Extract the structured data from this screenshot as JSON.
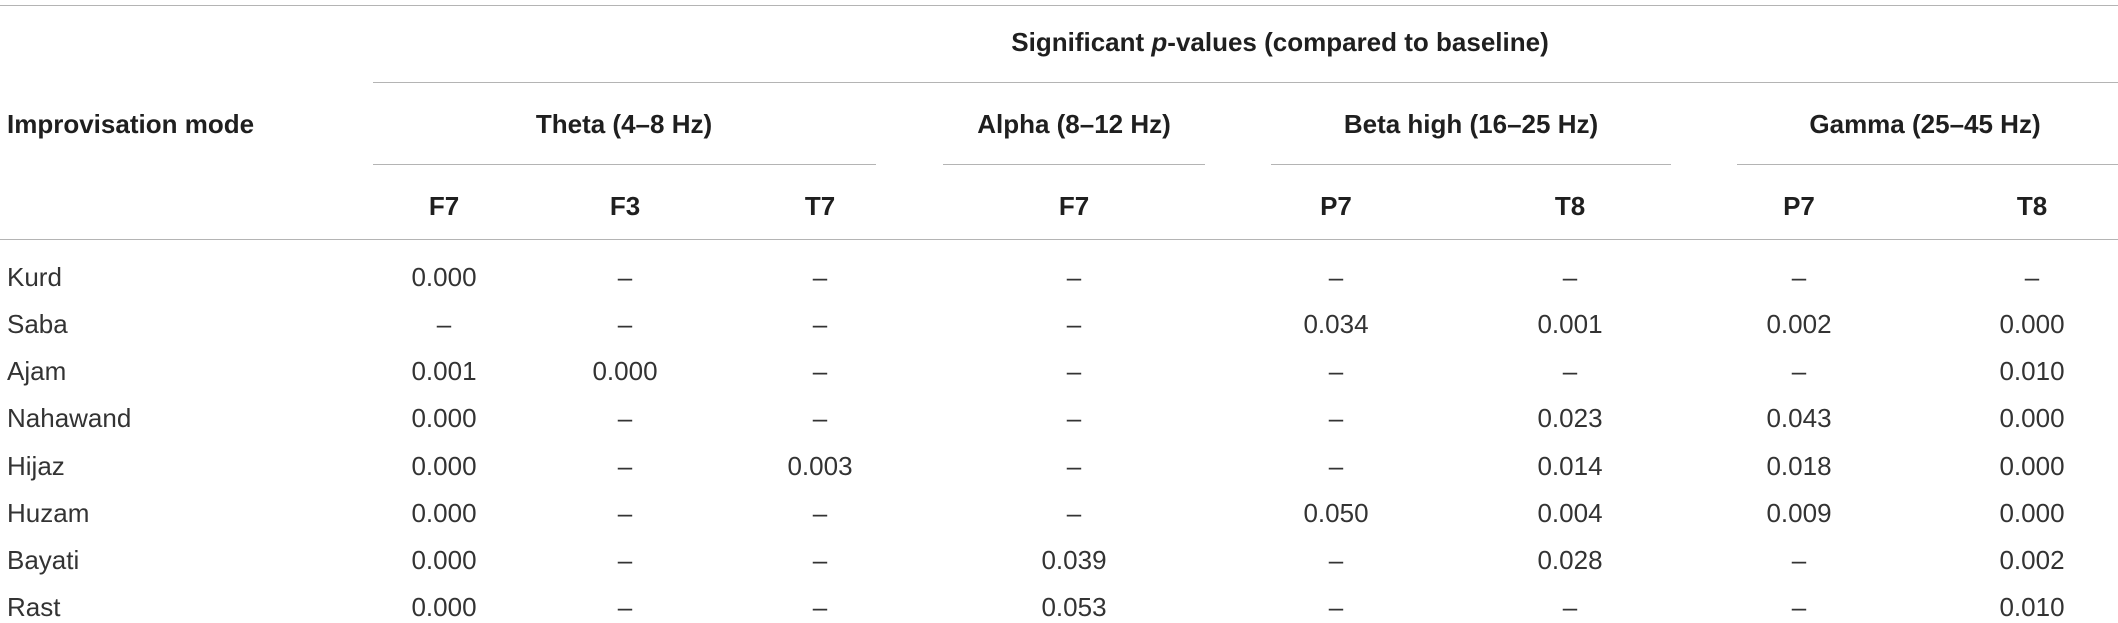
{
  "table": {
    "super_header_prefix": "Significant ",
    "super_header_italic": "p",
    "super_header_suffix": "-values (compared to baseline)",
    "row_header": "Improvisation mode",
    "bands": [
      {
        "label": "Theta (4–8 Hz)"
      },
      {
        "label": "Alpha (8–12 Hz)"
      },
      {
        "label": "Beta high (16–25 Hz)"
      },
      {
        "label": "Gamma (25–45 Hz)"
      }
    ],
    "channels": [
      "F7",
      "F3",
      "T7",
      "F7",
      "P7",
      "T8",
      "P7",
      "T8"
    ],
    "rows": [
      {
        "mode": "Kurd",
        "values": [
          "0.000",
          "–",
          "–",
          "–",
          "–",
          "–",
          "–",
          "–"
        ]
      },
      {
        "mode": "Saba",
        "values": [
          "–",
          "–",
          "–",
          "–",
          "0.034",
          "0.001",
          "0.002",
          "0.000"
        ]
      },
      {
        "mode": "Ajam",
        "values": [
          "0.001",
          "0.000",
          "–",
          "–",
          "–",
          "–",
          "–",
          "0.010"
        ]
      },
      {
        "mode": "Nahawand",
        "values": [
          "0.000",
          "–",
          "–",
          "–",
          "–",
          "0.023",
          "0.043",
          "0.000"
        ]
      },
      {
        "mode": "Hijaz",
        "values": [
          "0.000",
          "–",
          "0.003",
          "–",
          "–",
          "0.014",
          "0.018",
          "0.000"
        ]
      },
      {
        "mode": "Huzam",
        "values": [
          "0.000",
          "–",
          "–",
          "–",
          "0.050",
          "0.004",
          "0.009",
          "0.000"
        ]
      },
      {
        "mode": "Bayati",
        "values": [
          "0.000",
          "–",
          "–",
          "0.039",
          "–",
          "0.028",
          "–",
          "0.002"
        ]
      },
      {
        "mode": "Rast",
        "values": [
          "0.000",
          "–",
          "–",
          "0.053",
          "–",
          "–",
          "–",
          "0.010"
        ]
      }
    ]
  }
}
